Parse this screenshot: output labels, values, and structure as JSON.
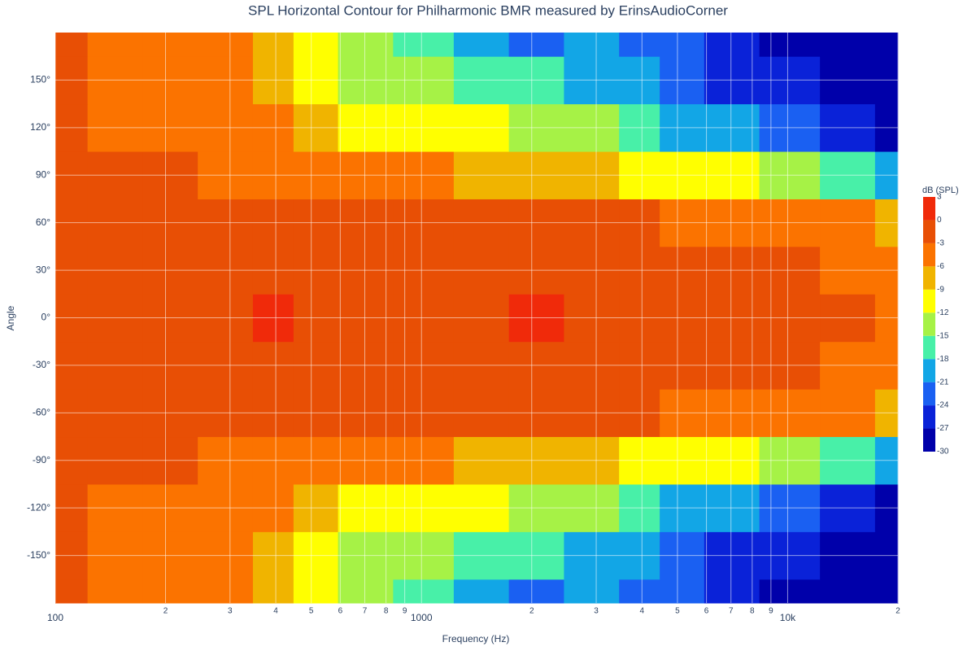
{
  "chart_data": {
    "type": "contour",
    "title": "SPL Horizontal Contour for Philharmonic BMR measured by ErinsAudioCorner",
    "xlabel": "Frequency (Hz)",
    "ylabel": "Angle",
    "colorbar_title": "dB (SPL)",
    "log_x": true,
    "grid": true,
    "xlim": [
      100,
      20000
    ],
    "xticks": [
      100,
      {
        "value": 200,
        "label": "2"
      },
      {
        "value": 300,
        "label": "3"
      },
      {
        "value": 400,
        "label": "4"
      },
      {
        "value": 500,
        "label": "5"
      },
      {
        "value": 600,
        "label": "6"
      },
      {
        "value": 700,
        "label": "7"
      },
      {
        "value": 800,
        "label": "8"
      },
      {
        "value": 900,
        "label": "9"
      },
      1000,
      {
        "value": 2000,
        "label": "2"
      },
      {
        "value": 3000,
        "label": "3"
      },
      {
        "value": 4000,
        "label": "4"
      },
      {
        "value": 5000,
        "label": "5"
      },
      {
        "value": 6000,
        "label": "6"
      },
      {
        "value": 7000,
        "label": "7"
      },
      {
        "value": 8000,
        "label": "8"
      },
      {
        "value": 9000,
        "label": "9"
      },
      {
        "value": 10000,
        "label": "10k"
      },
      {
        "value": 20000,
        "label": "2"
      }
    ],
    "ylim": [
      -180,
      180
    ],
    "yticks": [
      {
        "value": -150,
        "label": "-150°"
      },
      {
        "value": -120,
        "label": "-120°"
      },
      {
        "value": -90,
        "label": "-90°"
      },
      {
        "value": -60,
        "label": "-60°"
      },
      {
        "value": -30,
        "label": "-30°"
      },
      {
        "value": 0,
        "label": "0°"
      },
      {
        "value": 30,
        "label": "30°"
      },
      {
        "value": 60,
        "label": "60°"
      },
      {
        "value": 90,
        "label": "90°"
      },
      {
        "value": 120,
        "label": "120°"
      },
      {
        "value": 150,
        "label": "150°"
      }
    ],
    "zticks": [
      -30,
      -27,
      -24,
      -21,
      -18,
      -15,
      -12,
      -9,
      -6,
      -3,
      0,
      3
    ],
    "colors": [
      "#0000aa",
      "#0a22d8",
      "#1a60f2",
      "#12a6e6",
      "#48f0a8",
      "#a6f246",
      "#ffff00",
      "#f0b400",
      "#fb7300",
      "#e84f05",
      "#f02a0a"
    ],
    "x": [
      100,
      150,
      200,
      300,
      400,
      500,
      700,
      1000,
      1500,
      2000,
      3000,
      4000,
      5000,
      7000,
      10000,
      15000,
      20000
    ],
    "y": [
      -180,
      -150,
      -120,
      -90,
      -60,
      -30,
      0,
      30,
      60,
      90,
      120,
      150,
      180
    ],
    "z": [
      [
        -3,
        -4,
        -5,
        -6,
        -9,
        -11,
        -14,
        -16,
        -20,
        -23,
        -20,
        -22,
        -24,
        -26,
        -28,
        -30,
        -30
      ],
      [
        -3,
        -4,
        -4.5,
        -6,
        -8,
        -10,
        -13,
        -14,
        -16,
        -18,
        -19,
        -21,
        -23,
        -25,
        -27,
        -29,
        -30
      ],
      [
        -3,
        -3.5,
        -4,
        -5,
        -6,
        -8,
        -10,
        -11,
        -12,
        -13,
        -15,
        -17,
        -19,
        -21,
        -24,
        -27,
        -29
      ],
      [
        -2.5,
        -3,
        -3,
        -3.5,
        -4,
        -5,
        -6,
        -6,
        -7,
        -8,
        -9,
        -10,
        -11,
        -12,
        -14,
        -17,
        -20
      ],
      [
        -2,
        -2.5,
        -3,
        -2.5,
        -2,
        -2.5,
        -3,
        -3,
        -3,
        -3,
        -3,
        -3,
        -3.5,
        -4,
        -4.5,
        -5,
        -7
      ],
      [
        -2,
        -2,
        -2,
        -2,
        -1,
        -2,
        -2,
        -2,
        -2,
        -1.5,
        -2,
        -2,
        -2,
        -2.5,
        -3,
        -3.5,
        -6
      ],
      [
        -2,
        -2,
        -2,
        -1,
        1,
        -1,
        -1,
        -1,
        -1,
        0,
        -1.5,
        -1.5,
        -1.5,
        -2,
        -2,
        -2,
        -4
      ],
      [
        -2,
        -2,
        -2,
        -2,
        -1,
        -2,
        -2,
        -2,
        -2,
        -1.5,
        -2,
        -2,
        -2,
        -2.5,
        -3,
        -3.5,
        -6
      ],
      [
        -2,
        -2.5,
        -3,
        -2.5,
        -2,
        -2.5,
        -3,
        -3,
        -3,
        -3,
        -3,
        -3,
        -3.5,
        -4,
        -4.5,
        -5,
        -7
      ],
      [
        -2.5,
        -3,
        -3,
        -3.5,
        -4,
        -5,
        -6,
        -6,
        -7,
        -8,
        -9,
        -10,
        -11,
        -12,
        -14,
        -17,
        -20
      ],
      [
        -3,
        -3.5,
        -4,
        -5,
        -6,
        -8,
        -10,
        -11,
        -12,
        -13,
        -15,
        -17,
        -19,
        -21,
        -24,
        -27,
        -29
      ],
      [
        -3,
        -4,
        -4.5,
        -6,
        -8,
        -10,
        -13,
        -14,
        -16,
        -18,
        -19,
        -21,
        -23,
        -25,
        -27,
        -29,
        -30
      ],
      [
        -3,
        -4,
        -5,
        -6,
        -9,
        -11,
        -14,
        -16,
        -20,
        -23,
        -20,
        -22,
        -24,
        -26,
        -28,
        -30,
        -30
      ]
    ]
  }
}
